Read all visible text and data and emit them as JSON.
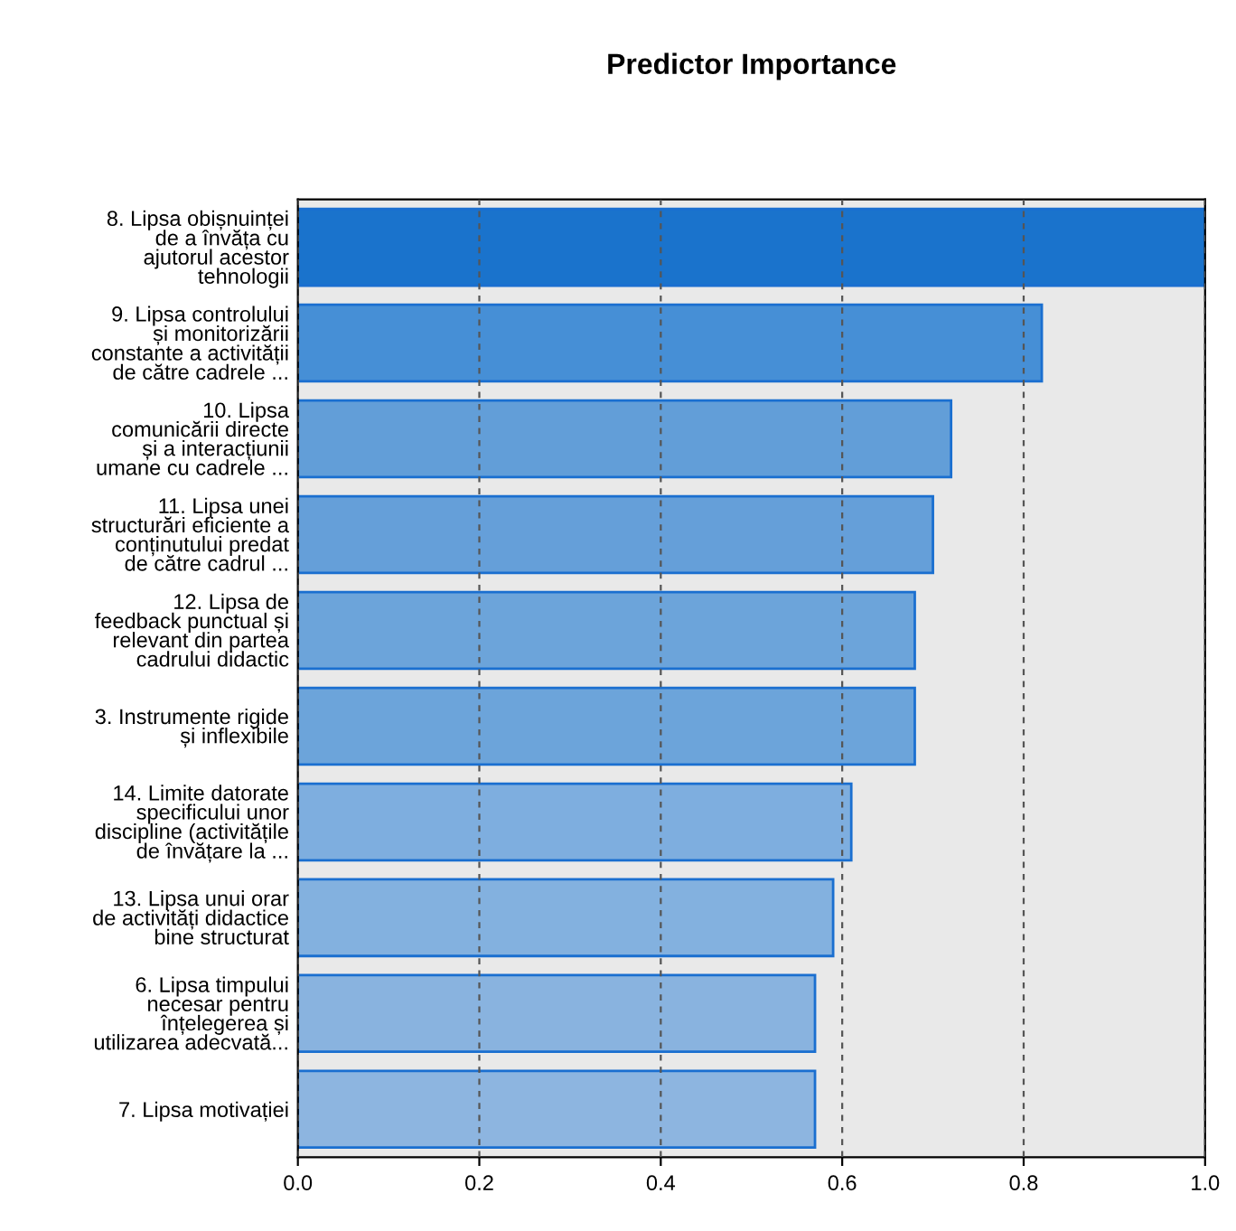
{
  "chart_data": {
    "type": "bar",
    "orientation": "horizontal",
    "title": "Predictor Importance",
    "categories": [
      "8. Lipsa obișnuinței\nde a învăța cu\najutorul acestor\ntehnologii",
      "9. Lipsa controlului\nși monitorizării\nconstante a activității\nde către cadrele ...",
      "10. Lipsa\ncomunicării directe\nși a interacțiunii\numane cu cadrele ...",
      "11. Lipsa unei\nstructurări eficiente a\nconținutului predat\nde către cadrul ...",
      "12. Lipsa de\nfeedback punctual și\nrelevant din partea\ncadrului didactic",
      "3. Instrumente rigide\nși inflexibile",
      "14. Limite datorate\nspecificului unor\ndiscipline (activitățile\nde învățare la ...",
      "13. Lipsa unui orar\nde activități didactice\nbine structurat",
      "6. Lipsa timpului\nnecesar pentru\nînțelegerea și\nutilizarea adecvată...",
      "7. Lipsa motivației"
    ],
    "values": [
      1.0,
      0.82,
      0.72,
      0.7,
      0.68,
      0.68,
      0.61,
      0.59,
      0.57,
      0.57
    ],
    "colors": [
      "#1a73cc",
      "#468fd6",
      "#629ed8",
      "#659fd9",
      "#6ca4da",
      "#6ca4da",
      "#7eaedf",
      "#83b1df",
      "#89b3df",
      "#8db5e0"
    ],
    "xlim": [
      0,
      1.0
    ],
    "xticks": [
      {
        "value": 0,
        "label": "0.0"
      },
      0.2,
      0.4,
      0.6,
      0.8,
      {
        "value": 1.0,
        "label": "1.0"
      }
    ],
    "grid": "x"
  }
}
